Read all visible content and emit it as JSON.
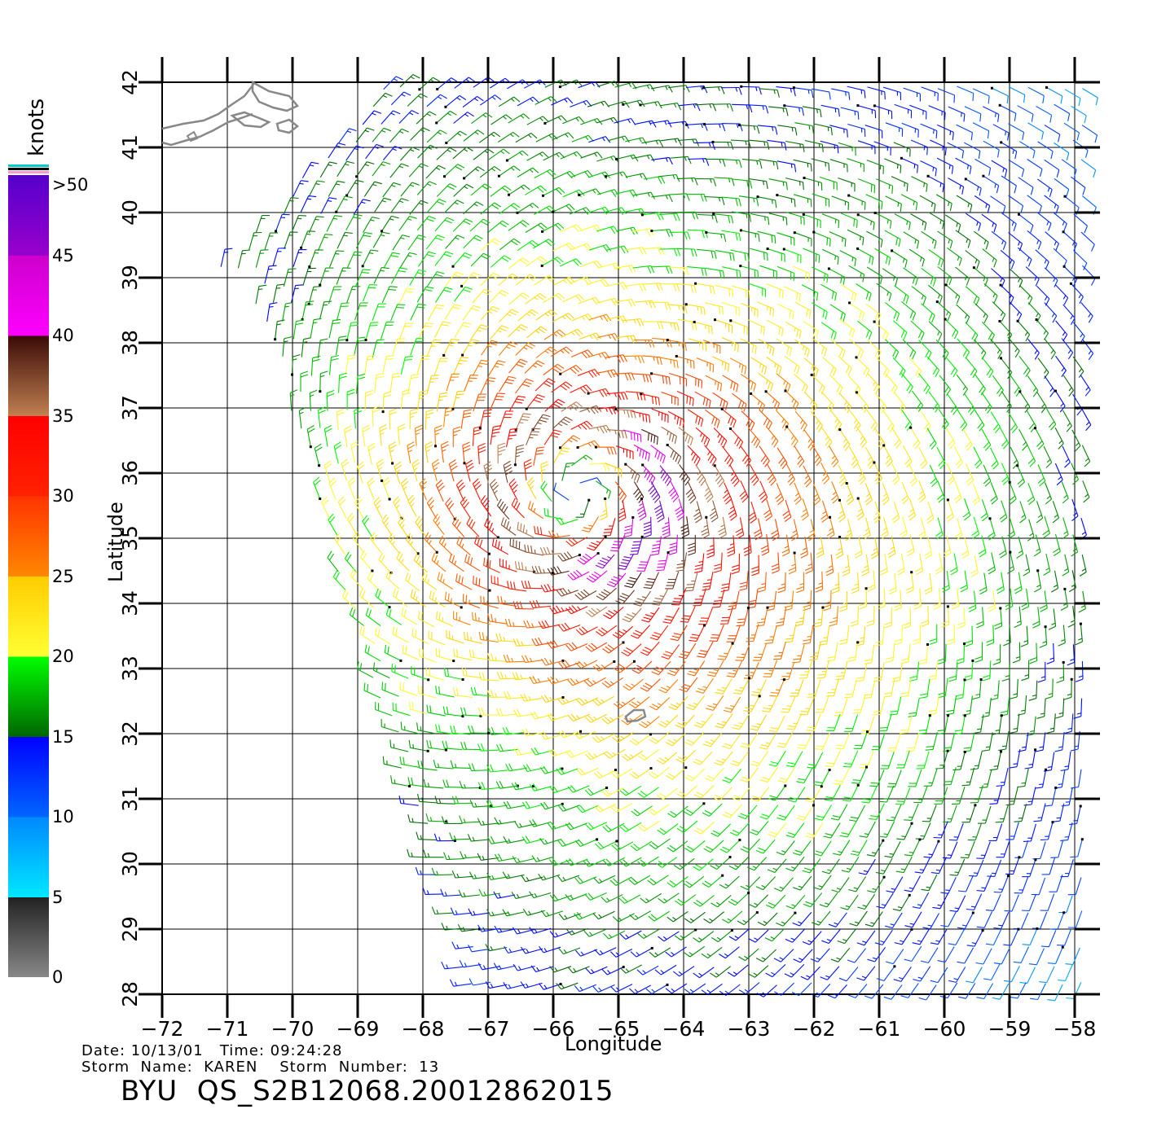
{
  "colorbar": {
    "unit": "knots",
    "labels": [
      ">50",
      "45",
      "40",
      "35",
      "30",
      "25",
      "20",
      "15",
      "10",
      "5",
      "0"
    ],
    "stops": [
      {
        "from": 0,
        "to": 5,
        "colors": [
          "#888888",
          "#222222"
        ]
      },
      {
        "from": 5,
        "to": 10,
        "colors": [
          "#00e8ff",
          "#0088ff"
        ]
      },
      {
        "from": 10,
        "to": 15,
        "colors": [
          "#0066ff",
          "#0000ff"
        ]
      },
      {
        "from": 15,
        "to": 20,
        "colors": [
          "#006600",
          "#00ff00"
        ]
      },
      {
        "from": 20,
        "to": 25,
        "colors": [
          "#ffff33",
          "#ffcc00"
        ]
      },
      {
        "from": 25,
        "to": 30,
        "colors": [
          "#ff8800",
          "#ff3300"
        ]
      },
      {
        "from": 30,
        "to": 35,
        "colors": [
          "#ff2200",
          "#ff0000"
        ]
      },
      {
        "from": 35,
        "to": 40,
        "colors": [
          "#c08050",
          "#3a0a05"
        ]
      },
      {
        "from": 40,
        "to": 45,
        "colors": [
          "#ff00ff",
          "#cc00cc"
        ]
      },
      {
        "from": 45,
        "to": 50,
        "colors": [
          "#9900cc",
          "#5500cc"
        ]
      }
    ],
    "top_stripes": [
      "#00cccc",
      "#000000",
      "#ff99cc"
    ]
  },
  "axes": {
    "xlabel": "Longitude",
    "ylabel": "Latitude",
    "x_ticks": [
      "−72",
      "−71",
      "−70",
      "−69",
      "−68",
      "−67",
      "−66",
      "−65",
      "−64",
      "−63",
      "−62",
      "−61",
      "−60",
      "−59",
      "−58"
    ],
    "y_ticks": [
      "28",
      "29",
      "30",
      "31",
      "32",
      "33",
      "34",
      "35",
      "36",
      "37",
      "38",
      "39",
      "40",
      "41",
      "42"
    ],
    "lon_range": [
      -72,
      -58
    ],
    "lat_range": [
      28,
      42
    ]
  },
  "storm": {
    "center_lon": -65.6,
    "center_lat": 35.7,
    "max_wind_kt": 45
  },
  "info": {
    "line1": "Date: 10/13/01   Time: 09:24:28",
    "line2": "Storm  Name:  KAREN    Storm  Number:  13",
    "title": "BYU  QS_S2B12068.20012862015"
  },
  "colors": {
    "land_outline": "#888888",
    "grid": "#000000"
  }
}
